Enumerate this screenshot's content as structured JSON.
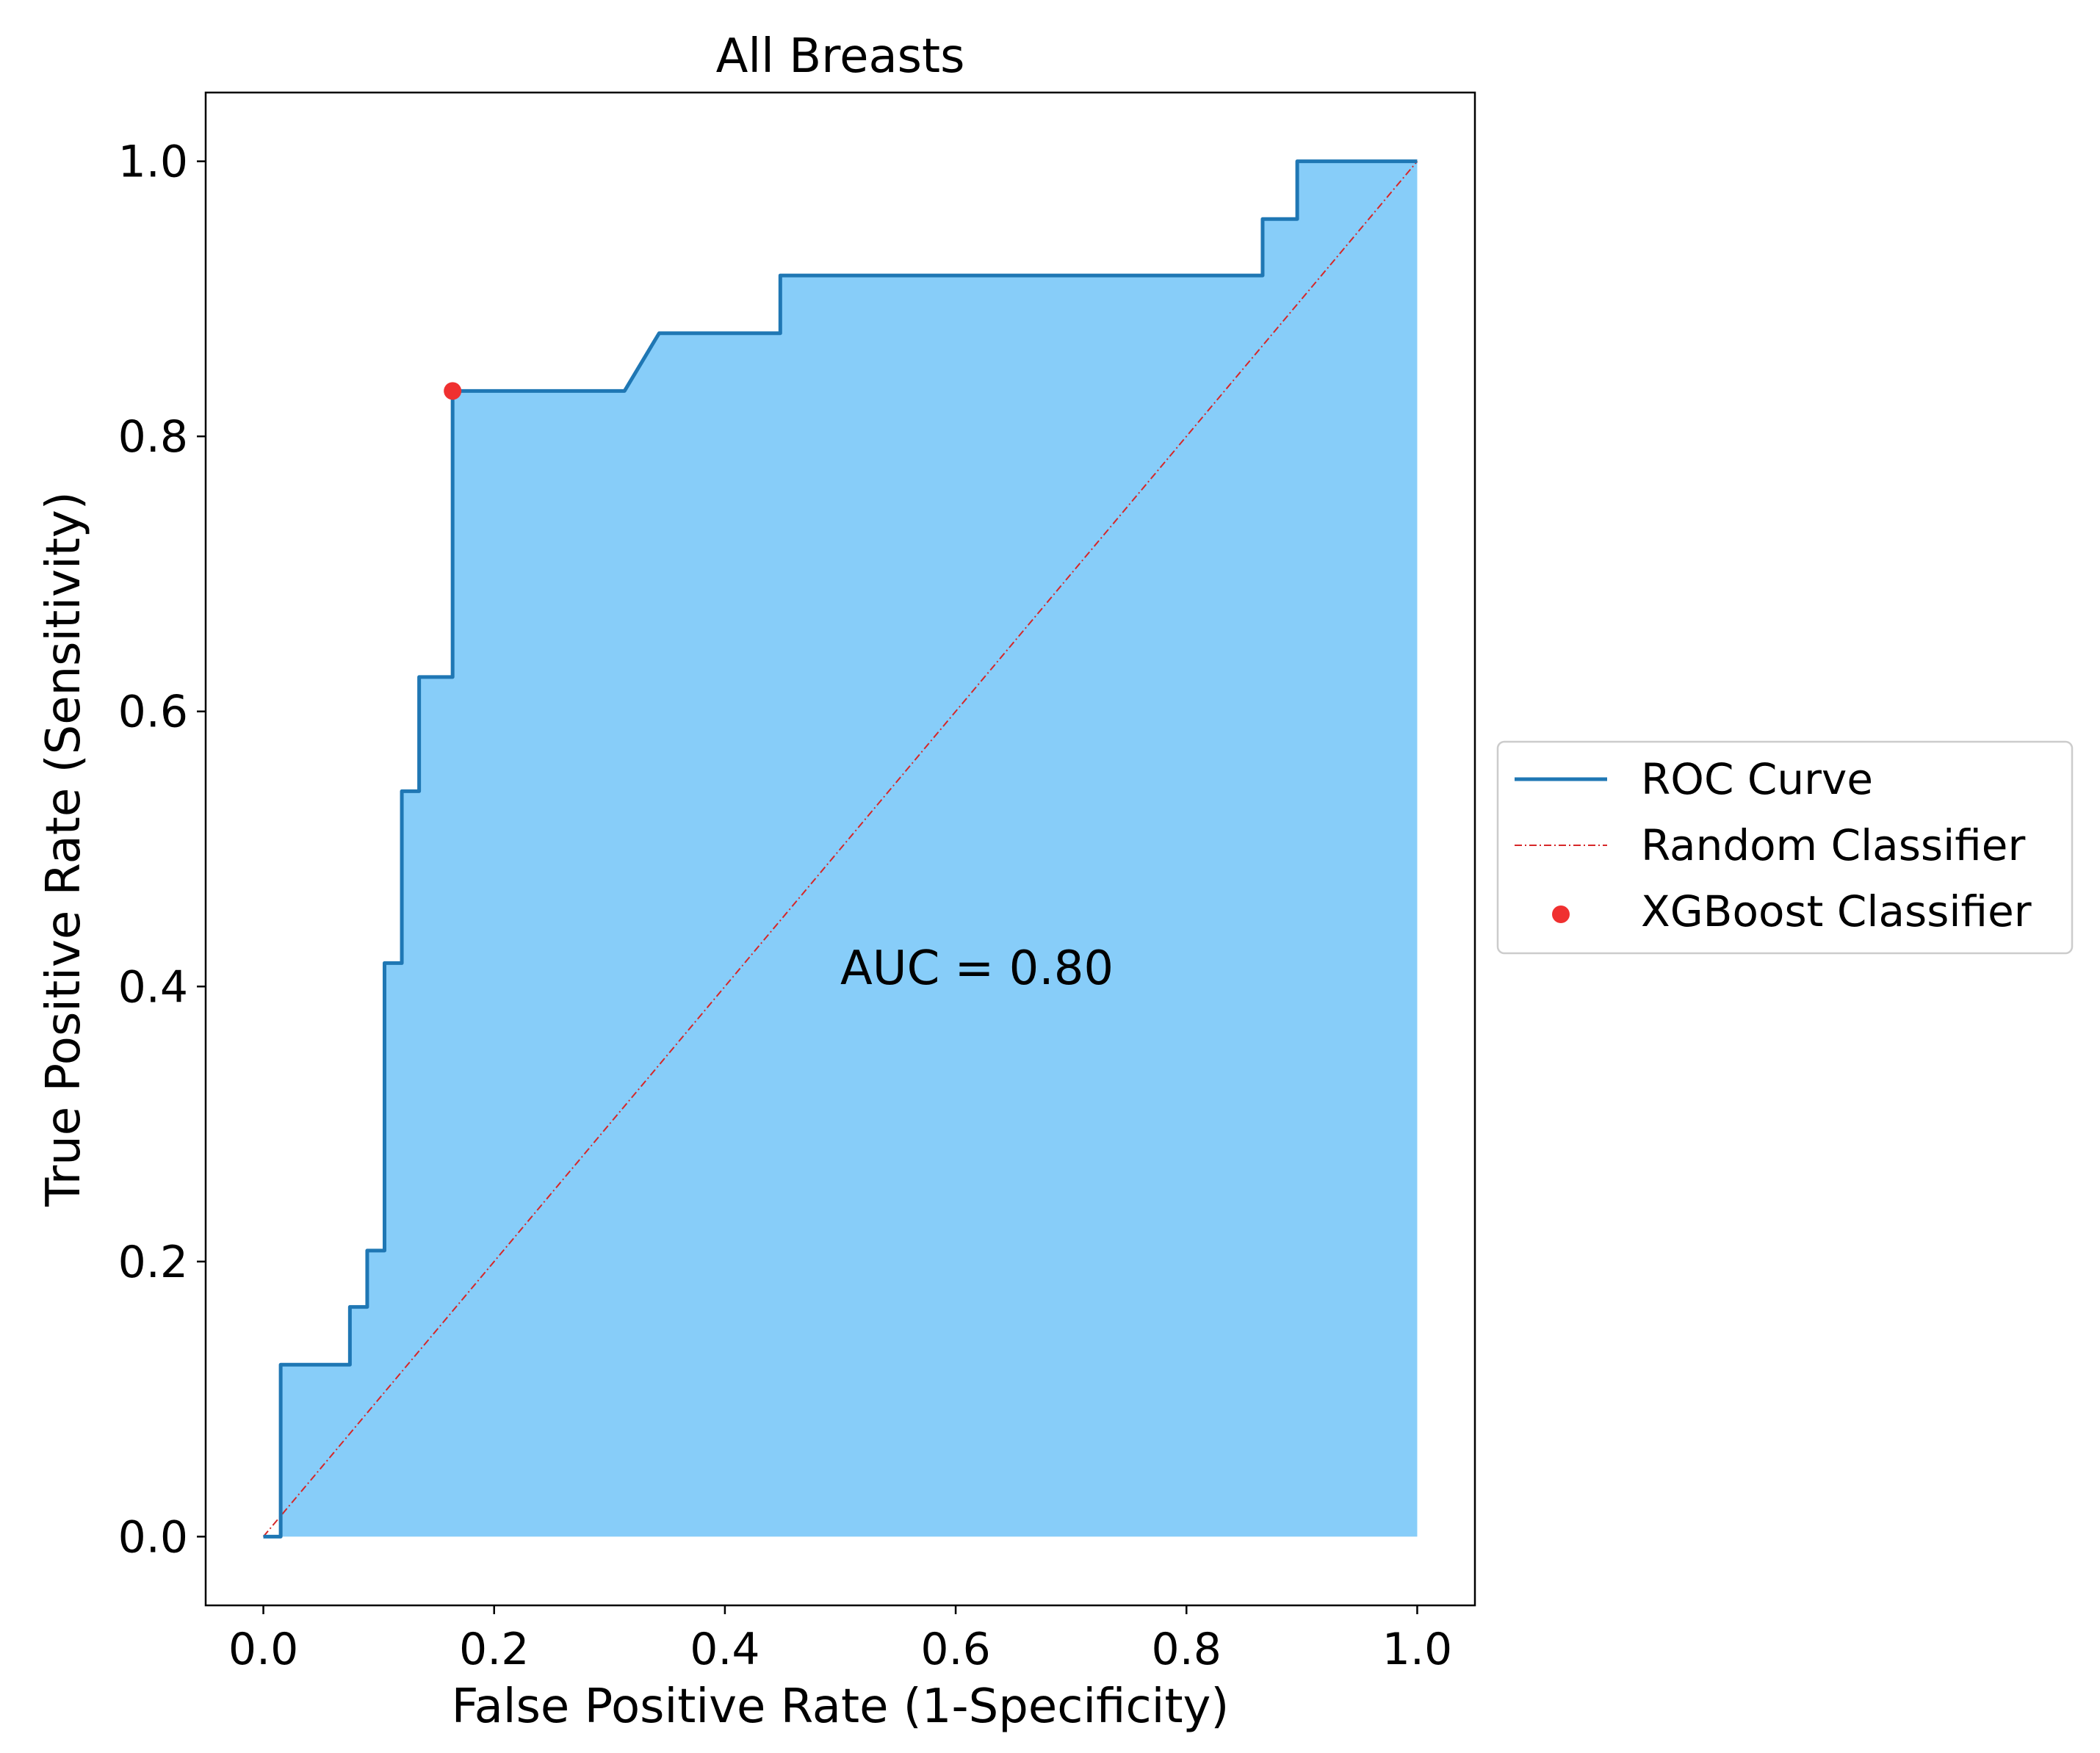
{
  "chart_data": {
    "type": "line",
    "title": "All Breasts",
    "xlabel": "False Positive Rate (1-Specificity)",
    "ylabel": "True Positive Rate (Sensitivity)",
    "xlim": [
      -0.05,
      1.05
    ],
    "ylim": [
      -0.05,
      1.05
    ],
    "xticks": [
      0.0,
      0.2,
      0.4,
      0.6,
      0.8,
      1.0
    ],
    "yticks": [
      0.0,
      0.2,
      0.4,
      0.6,
      0.8,
      1.0
    ],
    "xtick_labels": [
      "0.0",
      "0.2",
      "0.4",
      "0.6",
      "0.8",
      "1.0"
    ],
    "ytick_labels": [
      "0.0",
      "0.2",
      "0.4",
      "0.6",
      "0.8",
      "1.0"
    ],
    "grid": false,
    "legend_position": "outside-right",
    "annotation": "AUC = 0.80",
    "series": [
      {
        "name": "ROC Curve",
        "style": "solid-line-with-fill",
        "color": "#1f77b4",
        "fill_color": "#87cdf9",
        "x": [
          0.0,
          0.015,
          0.015,
          0.075,
          0.075,
          0.09,
          0.09,
          0.105,
          0.105,
          0.12,
          0.12,
          0.135,
          0.135,
          0.164,
          0.164,
          0.313,
          0.343,
          0.448,
          0.448,
          0.866,
          0.866,
          0.896,
          0.896,
          1.0
        ],
        "y": [
          0.0,
          0.0,
          0.125,
          0.125,
          0.167,
          0.167,
          0.208,
          0.208,
          0.417,
          0.417,
          0.542,
          0.542,
          0.625,
          0.625,
          0.833,
          0.833,
          0.875,
          0.875,
          0.917,
          0.917,
          0.958,
          0.958,
          1.0,
          1.0
        ]
      },
      {
        "name": "Random Classifier",
        "style": "dash-dot",
        "color": "#d62728",
        "x": [
          0.0,
          1.0
        ],
        "y": [
          0.0,
          1.0
        ]
      },
      {
        "name": "XGBoost Classifier",
        "style": "point",
        "color": "#f03030",
        "x": [
          0.164
        ],
        "y": [
          0.833
        ]
      }
    ]
  }
}
